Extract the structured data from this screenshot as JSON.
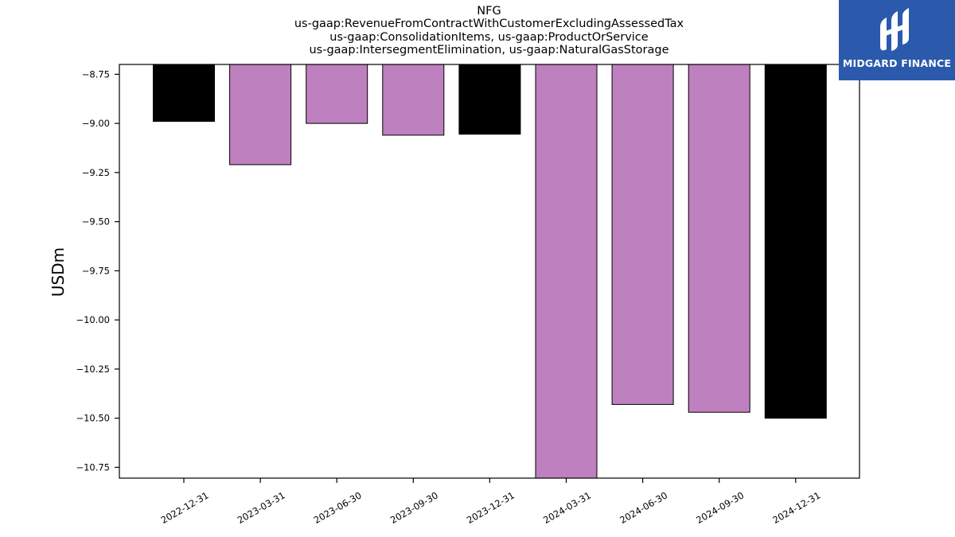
{
  "chart_data": {
    "type": "bar",
    "title_lines": [
      "NFG",
      "us-gaap:RevenueFromContractWithCustomerExcludingAssessedTax",
      "us-gaap:ConsolidationItems, us-gaap:ProductOrService",
      "us-gaap:IntersegmentElimination, us-gaap:NaturalGasStorage"
    ],
    "ylabel": "USDm",
    "xlabel": "",
    "categories": [
      "2022-12-31",
      "2023-03-31",
      "2023-06-30",
      "2023-09-30",
      "2023-12-31",
      "2024-03-31",
      "2024-06-30",
      "2024-09-30",
      "2024-12-31"
    ],
    "values": [
      -8.99,
      -9.21,
      -9.0,
      -9.06,
      -9.055,
      -10.82,
      -10.43,
      -10.47,
      -10.5
    ],
    "bar_colors": [
      "#000000",
      "#bf80bf",
      "#bf80bf",
      "#bf80bf",
      "#000000",
      "#bf80bf",
      "#bf80bf",
      "#bf80bf",
      "#000000"
    ],
    "ylim": [
      -10.805,
      -8.7
    ],
    "yticks": [
      -8.75,
      -9.0,
      -9.25,
      -9.5,
      -9.75,
      -10.0,
      -10.25,
      -10.5,
      -10.75
    ],
    "ytick_labels": [
      "−8.75",
      "−9.00",
      "−9.25",
      "−9.50",
      "−9.75",
      "−10.00",
      "−10.25",
      "−10.50",
      "−10.75"
    ],
    "grid": false,
    "legend": "none"
  },
  "logo": {
    "text": "MIDGARD FINANCE",
    "background": "#2b5aad"
  }
}
